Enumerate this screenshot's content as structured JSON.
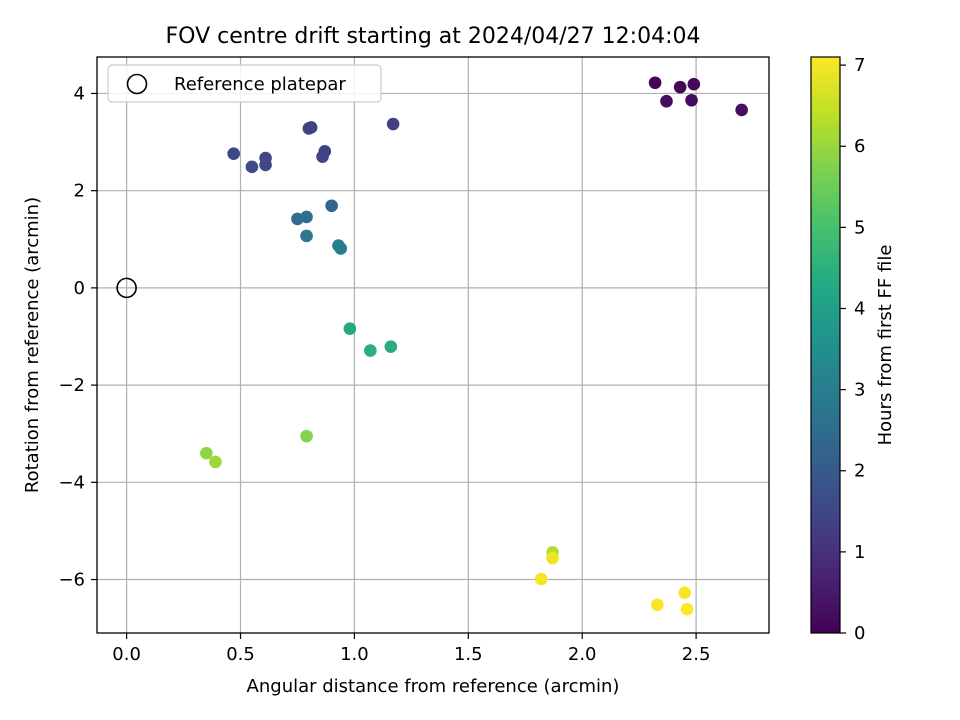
{
  "chart_data": {
    "type": "scatter",
    "title": "FOV centre drift starting at 2024/04/27 12:04:04",
    "xlabel": "Angular distance from reference (arcmin)",
    "ylabel": "Rotation from reference (arcmin)",
    "xlim": [
      -0.13,
      2.82
    ],
    "ylim": [
      -7.1,
      4.75
    ],
    "xticks": [
      0.0,
      0.5,
      1.0,
      1.5,
      2.0,
      2.5
    ],
    "xtick_labels": [
      "0.0",
      "0.5",
      "1.0",
      "1.5",
      "2.0",
      "2.5"
    ],
    "yticks": [
      4,
      2,
      0,
      -2,
      -4,
      -6
    ],
    "ytick_labels": [
      "4",
      "2",
      "0",
      "−2",
      "−4",
      "−6"
    ],
    "grid": true,
    "colormap": "viridis",
    "colorbar": {
      "label": "Hours from first FF file",
      "range": [
        0,
        7.1
      ],
      "ticks": [
        0,
        1,
        2,
        3,
        4,
        5,
        6,
        7
      ],
      "tick_labels": [
        "0",
        "1",
        "2",
        "3",
        "4",
        "5",
        "6",
        "7"
      ]
    },
    "legend": {
      "position": "top-left",
      "entries": [
        "Reference platepar"
      ]
    },
    "reference_point": {
      "x": 0.0,
      "y": 0.0
    },
    "points": [
      {
        "x": 2.32,
        "y": 4.22,
        "c": 0.05
      },
      {
        "x": 2.43,
        "y": 4.13,
        "c": 0.1
      },
      {
        "x": 2.49,
        "y": 4.19,
        "c": 0.15
      },
      {
        "x": 2.37,
        "y": 3.84,
        "c": 0.2
      },
      {
        "x": 2.48,
        "y": 3.86,
        "c": 0.25
      },
      {
        "x": 2.7,
        "y": 3.66,
        "c": 0.3
      },
      {
        "x": 1.17,
        "y": 3.37,
        "c": 1.3
      },
      {
        "x": 0.81,
        "y": 3.3,
        "c": 1.3
      },
      {
        "x": 0.8,
        "y": 3.28,
        "c": 1.35
      },
      {
        "x": 0.87,
        "y": 2.81,
        "c": 1.4
      },
      {
        "x": 0.86,
        "y": 2.7,
        "c": 1.45
      },
      {
        "x": 0.47,
        "y": 2.76,
        "c": 1.5
      },
      {
        "x": 0.61,
        "y": 2.67,
        "c": 1.5
      },
      {
        "x": 0.61,
        "y": 2.53,
        "c": 1.55
      },
      {
        "x": 0.55,
        "y": 2.49,
        "c": 1.6
      },
      {
        "x": 0.9,
        "y": 1.69,
        "c": 2.3
      },
      {
        "x": 0.75,
        "y": 1.42,
        "c": 2.5
      },
      {
        "x": 0.79,
        "y": 1.46,
        "c": 2.55
      },
      {
        "x": 0.79,
        "y": 1.07,
        "c": 2.8
      },
      {
        "x": 0.93,
        "y": 0.87,
        "c": 3.0
      },
      {
        "x": 0.94,
        "y": 0.81,
        "c": 3.05
      },
      {
        "x": 0.98,
        "y": -0.84,
        "c": 4.3
      },
      {
        "x": 1.16,
        "y": -1.21,
        "c": 4.4
      },
      {
        "x": 1.07,
        "y": -1.29,
        "c": 4.45
      },
      {
        "x": 0.79,
        "y": -3.05,
        "c": 5.8
      },
      {
        "x": 0.35,
        "y": -3.4,
        "c": 5.9
      },
      {
        "x": 0.39,
        "y": -3.58,
        "c": 6.05
      },
      {
        "x": 1.87,
        "y": -5.44,
        "c": 6.3
      },
      {
        "x": 1.87,
        "y": -5.56,
        "c": 6.95
      },
      {
        "x": 1.82,
        "y": -5.99,
        "c": 7.0
      },
      {
        "x": 2.45,
        "y": -6.27,
        "c": 7.05
      },
      {
        "x": 2.33,
        "y": -6.52,
        "c": 7.05
      },
      {
        "x": 2.46,
        "y": -6.61,
        "c": 7.1
      }
    ]
  }
}
